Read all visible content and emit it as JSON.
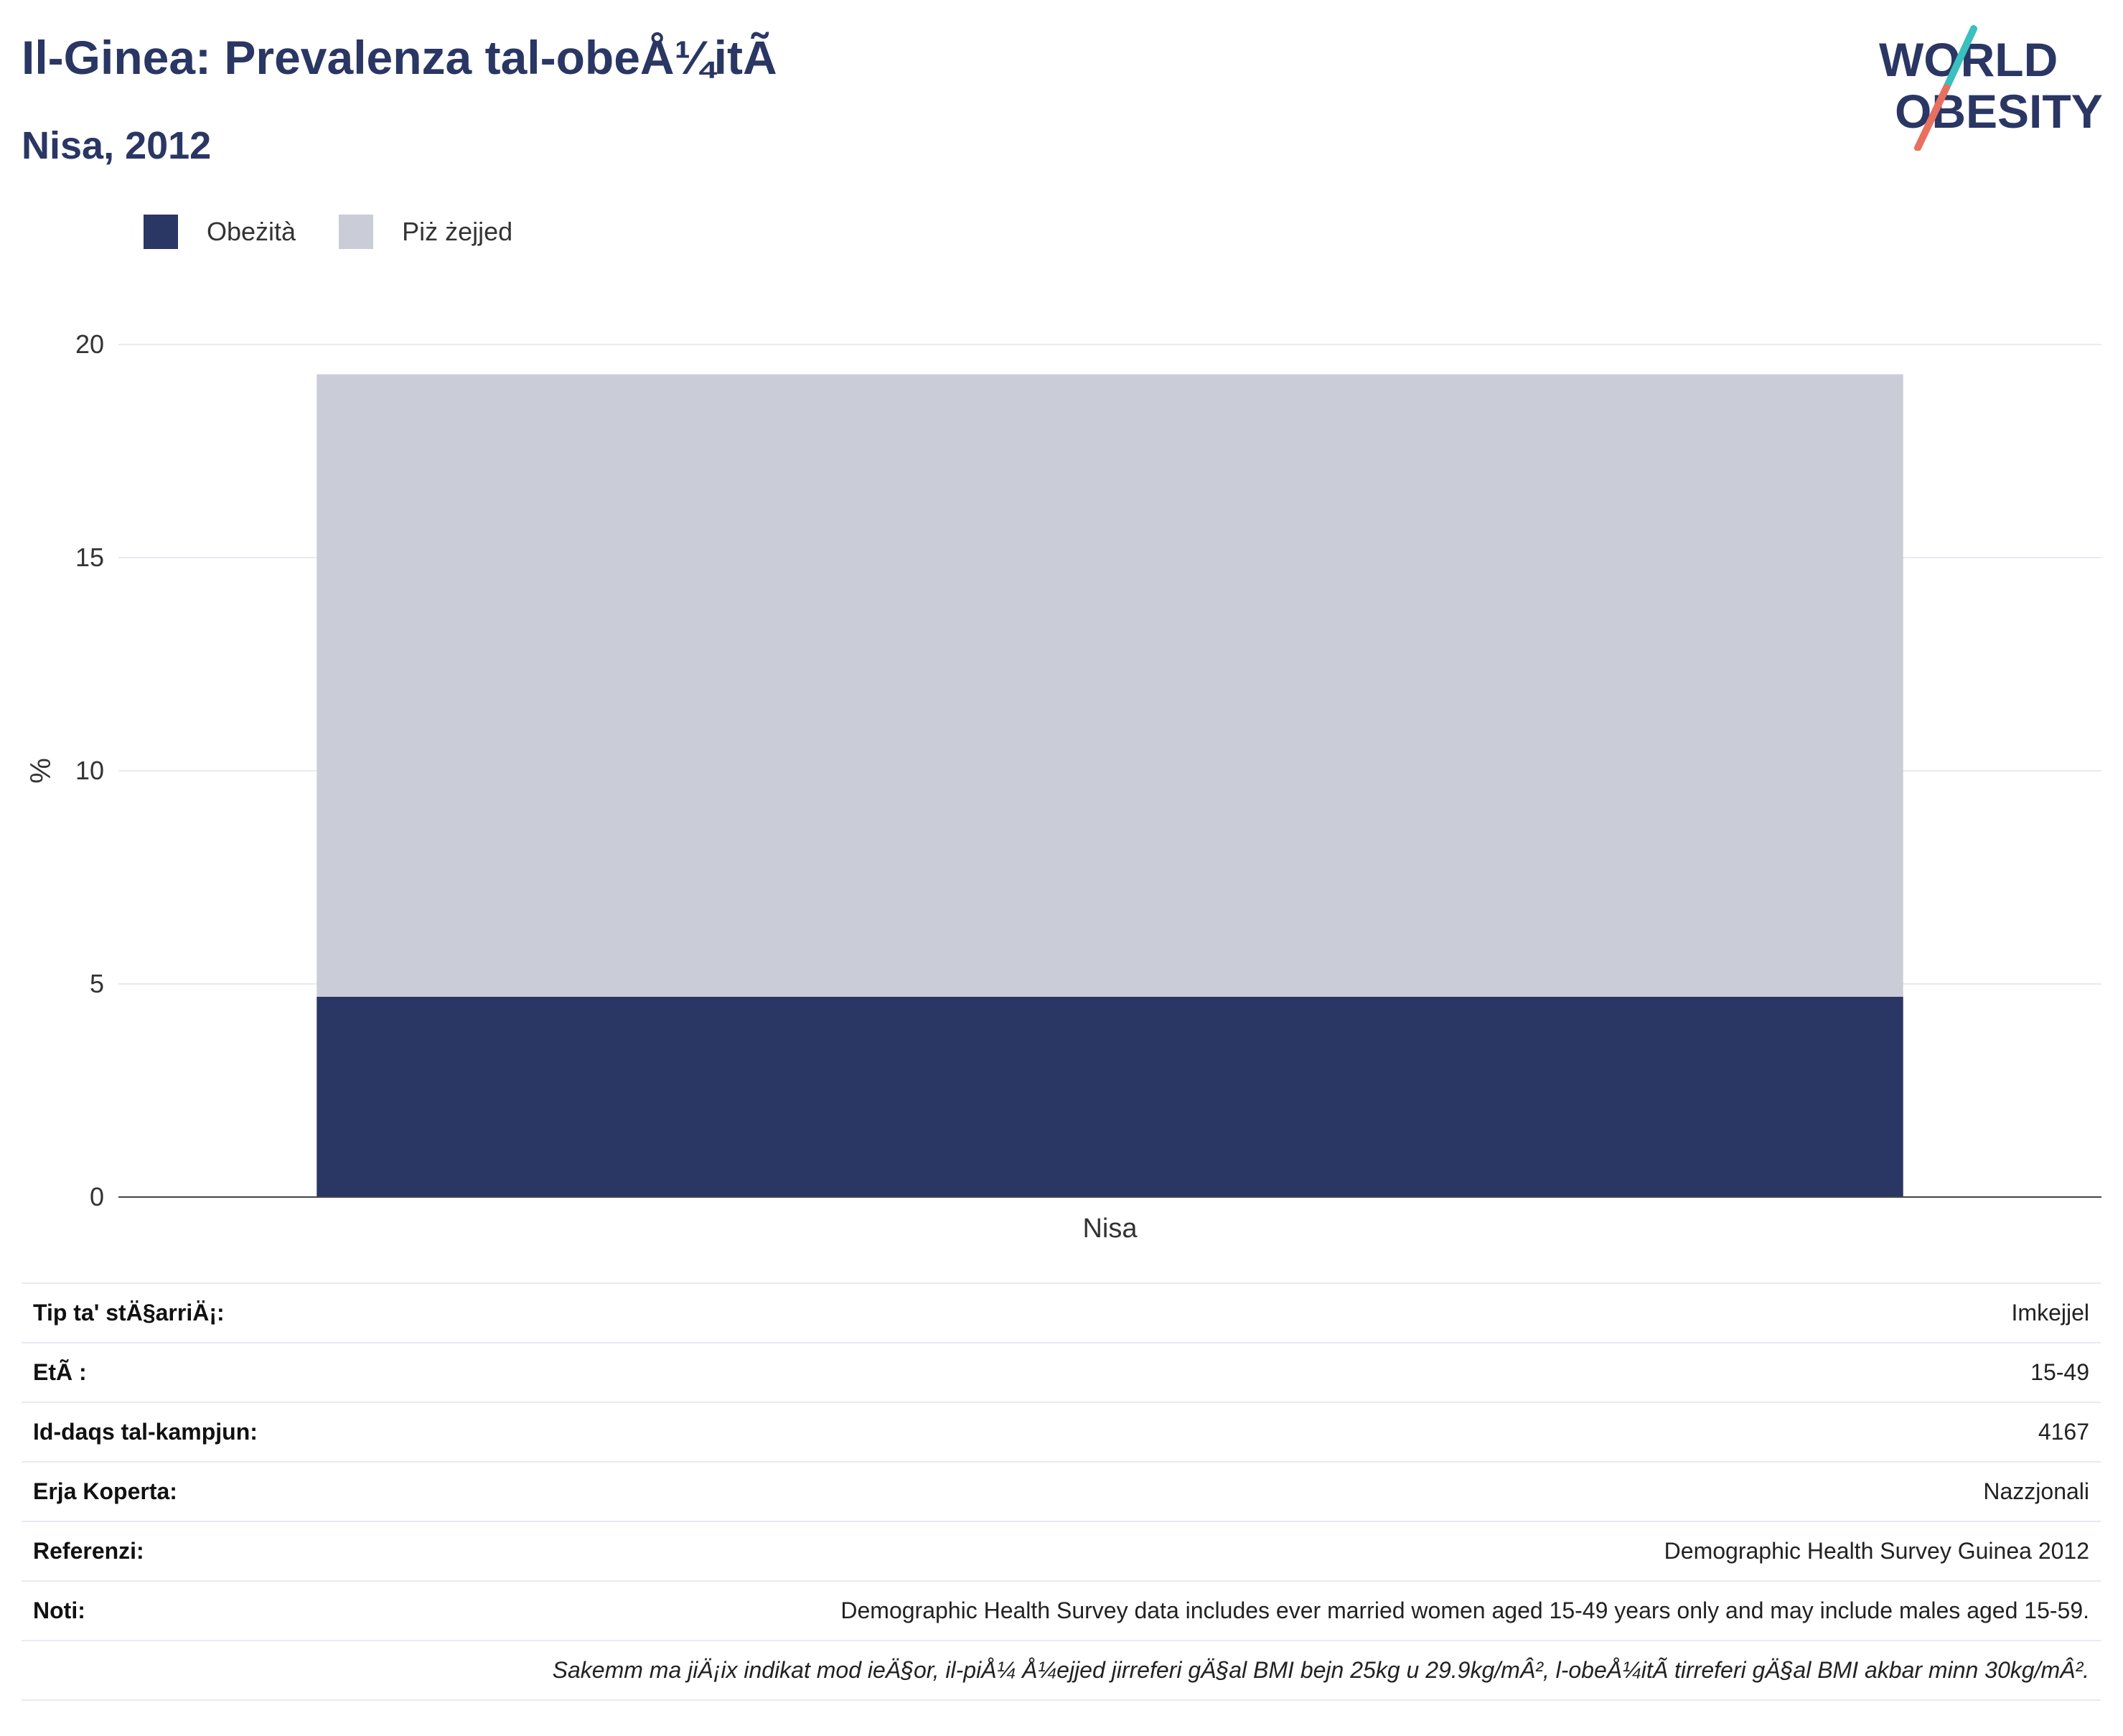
{
  "header": {
    "title": "Il-Ginea: Prevalenza tal-obeÅ¼itÃ",
    "subtitle": "Nisa, 2012"
  },
  "logo": {
    "line1": "WORLD",
    "line2": "OBESITY",
    "colors": {
      "text": "#2a3663",
      "slash_top": "#3bbfbf",
      "slash_bottom": "#e8705f"
    }
  },
  "legend": [
    {
      "label": "Obeżità",
      "color": "#2a3663"
    },
    {
      "label": "Piż żejjed",
      "color": "#cacdd8"
    }
  ],
  "chart_data": {
    "type": "bar",
    "stacked": true,
    "categories": [
      "Nisa"
    ],
    "series": [
      {
        "name": "Obeżità",
        "values": [
          4.7
        ],
        "color": "#2a3663"
      },
      {
        "name": "Piż żejjed",
        "values": [
          14.6
        ],
        "color": "#cacdd8"
      }
    ],
    "ylabel": "%",
    "ylim": [
      0,
      20
    ],
    "yticks": [
      0,
      5,
      10,
      15,
      20
    ],
    "grid": true,
    "legend_position": "top-left"
  },
  "info": {
    "rows": [
      {
        "key": "Tip ta' stÄ§arriÄ¡:",
        "value": "Imkejjel"
      },
      {
        "key": "EtÃ :",
        "value": "15-49"
      },
      {
        "key": "Id-daqs tal-kampjun:",
        "value": "4167"
      },
      {
        "key": "Erja Koperta:",
        "value": "Nazzjonali"
      },
      {
        "key": "Referenzi:",
        "value": "Demographic Health Survey Guinea 2012"
      },
      {
        "key": "Noti:",
        "value": "Demographic Health Survey data includes ever married women aged 15-49 years only and may include males aged 15-59."
      }
    ],
    "footnote": "Sakemm ma jiÄ¡ix indikat mod ieÄ§or, il-piÅ¼ Å¼ejjed jirreferi gÄ§al BMI bejn 25kg u 29.9kg/mÂ², l-obeÅ¼itÃ  tirreferi gÄ§al BMI akbar minn 30kg/mÂ²."
  }
}
